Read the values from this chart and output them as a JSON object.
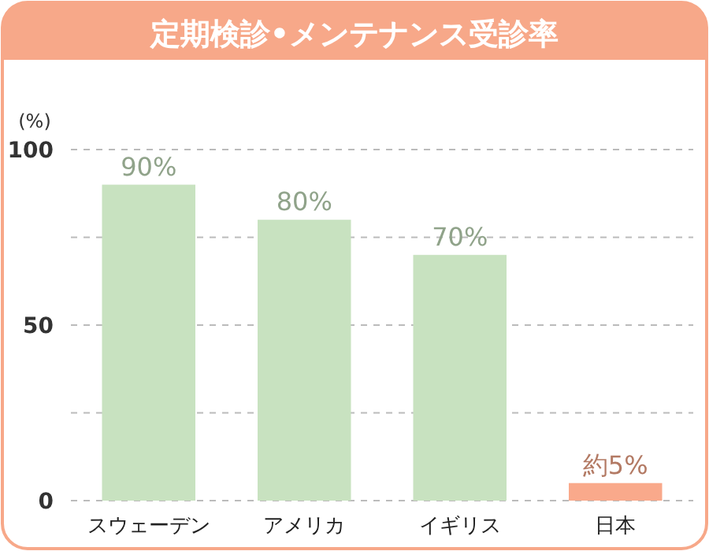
{
  "chart_data": {
    "type": "bar",
    "title": "定期検診•メンテナンス受診率",
    "ylabel": "(%)",
    "categories": [
      "スウェーデン",
      "アメリカ",
      "イギリス",
      "日本"
    ],
    "values": [
      90,
      80,
      70,
      5
    ],
    "colors": [
      "#c8e2c0",
      "#c8e2c0",
      "#c8e2c0",
      "#f9a98b"
    ],
    "value_labels": [
      "90%",
      "80%",
      "70%",
      "約5%"
    ],
    "ylim": [
      0,
      100
    ],
    "yticks": [
      0,
      {
        "value": 25,
        "label": null
      },
      50,
      {
        "value": 75,
        "label": null
      },
      100
    ],
    "grid": "y"
  }
}
